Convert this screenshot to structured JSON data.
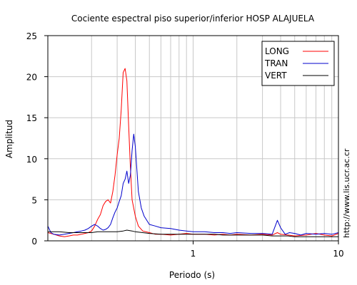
{
  "page": {
    "side_label": "http://www.lis.ucr.ac.cr"
  },
  "chart_data": {
    "type": "line",
    "title": "Cociente espectral piso superior/inferior  HOSP ALAJUELA",
    "xlabel": "Periodo (s)",
    "ylabel": "Amplitud",
    "xscale": "log",
    "xlim": [
      0.1,
      10
    ],
    "ylim": [
      0,
      25
    ],
    "xticks": [
      {
        "value": 1,
        "label": "1"
      },
      {
        "value": 10,
        "label": "10"
      }
    ],
    "yticks": [
      0,
      5,
      10,
      15,
      20,
      25
    ],
    "grid": true,
    "legend_position": "top-right",
    "series": [
      {
        "name": "LONG",
        "color": "#ff0000",
        "x": [
          0.1,
          0.11,
          0.12,
          0.13,
          0.14,
          0.15,
          0.16,
          0.17,
          0.18,
          0.19,
          0.2,
          0.21,
          0.22,
          0.23,
          0.24,
          0.25,
          0.26,
          0.27,
          0.28,
          0.29,
          0.3,
          0.31,
          0.32,
          0.33,
          0.34,
          0.35,
          0.36,
          0.37,
          0.38,
          0.4,
          0.42,
          0.45,
          0.5,
          0.55,
          0.6,
          0.7,
          0.8,
          0.9,
          1.0,
          1.2,
          1.4,
          1.6,
          1.8,
          2.0,
          2.5,
          3.0,
          3.5,
          3.8,
          4.0,
          4.5,
          5.0,
          6.0,
          7.0,
          8.0,
          9.0,
          10.0
        ],
        "y": [
          1.0,
          0.8,
          0.6,
          0.5,
          0.6,
          0.7,
          0.7,
          0.8,
          0.9,
          1.0,
          1.2,
          1.8,
          2.6,
          3.2,
          4.3,
          4.8,
          5.0,
          4.6,
          6.0,
          8.0,
          10.5,
          12.5,
          16.0,
          20.5,
          21.0,
          19.5,
          14.0,
          9.0,
          5.0,
          3.0,
          1.8,
          1.2,
          1.0,
          0.8,
          0.8,
          0.7,
          0.8,
          0.9,
          0.8,
          0.8,
          0.7,
          0.8,
          0.7,
          0.8,
          0.7,
          0.8,
          0.7,
          1.0,
          0.8,
          0.7,
          0.6,
          0.7,
          0.9,
          0.7,
          0.6,
          0.9
        ]
      },
      {
        "name": "TRAN",
        "color": "#0000cc",
        "x": [
          0.1,
          0.105,
          0.11,
          0.12,
          0.13,
          0.14,
          0.15,
          0.16,
          0.17,
          0.18,
          0.19,
          0.2,
          0.21,
          0.22,
          0.23,
          0.24,
          0.25,
          0.26,
          0.27,
          0.28,
          0.29,
          0.3,
          0.31,
          0.32,
          0.33,
          0.34,
          0.35,
          0.36,
          0.37,
          0.38,
          0.39,
          0.4,
          0.42,
          0.44,
          0.46,
          0.5,
          0.55,
          0.6,
          0.7,
          0.8,
          0.9,
          1.0,
          1.2,
          1.4,
          1.6,
          1.8,
          2.0,
          2.5,
          3.0,
          3.5,
          3.8,
          4.0,
          4.3,
          4.6,
          5.0,
          5.5,
          6.0,
          7.0,
          8.0,
          9.0,
          10.0
        ],
        "y": [
          1.8,
          1.0,
          0.8,
          0.7,
          0.8,
          0.9,
          1.0,
          1.1,
          1.2,
          1.3,
          1.5,
          1.8,
          2.0,
          1.8,
          1.5,
          1.3,
          1.4,
          1.6,
          2.0,
          2.8,
          3.5,
          4.0,
          4.8,
          5.5,
          7.0,
          7.5,
          8.5,
          7.0,
          8.0,
          11.0,
          13.0,
          11.5,
          6.0,
          4.0,
          3.0,
          2.0,
          1.8,
          1.6,
          1.5,
          1.3,
          1.2,
          1.1,
          1.1,
          1.0,
          1.0,
          0.9,
          1.0,
          0.9,
          0.9,
          0.8,
          2.5,
          1.6,
          0.8,
          1.0,
          0.9,
          0.7,
          0.9,
          0.8,
          0.9,
          0.8,
          1.0
        ]
      },
      {
        "name": "VERT",
        "color": "#000000",
        "x": [
          0.1,
          0.12,
          0.14,
          0.16,
          0.18,
          0.2,
          0.22,
          0.25,
          0.28,
          0.3,
          0.33,
          0.35,
          0.38,
          0.4,
          0.45,
          0.5,
          0.6,
          0.7,
          0.8,
          0.9,
          1.0,
          1.2,
          1.4,
          1.6,
          1.8,
          2.0,
          2.5,
          3.0,
          3.5,
          4.0,
          4.5,
          5.0,
          6.0,
          7.0,
          8.0,
          9.0,
          10.0
        ],
        "y": [
          1.1,
          1.1,
          1.0,
          1.0,
          1.0,
          1.0,
          1.1,
          1.1,
          1.1,
          1.1,
          1.2,
          1.3,
          1.2,
          1.1,
          1.0,
          0.9,
          0.8,
          0.8,
          0.8,
          0.8,
          0.8,
          0.8,
          0.8,
          0.7,
          0.7,
          0.7,
          0.7,
          0.7,
          0.6,
          0.6,
          0.6,
          0.5,
          0.5,
          0.5,
          0.5,
          0.5,
          0.5
        ]
      }
    ]
  }
}
